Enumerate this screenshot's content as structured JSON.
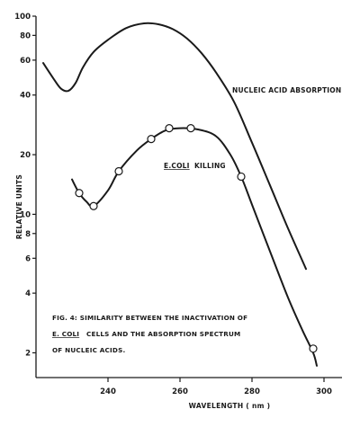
{
  "chart_data": {
    "type": "line",
    "xlabel": "WAVELENGTH ( nm )",
    "ylabel": "RELATIVE UNITS",
    "xlim": [
      220,
      305
    ],
    "ylim": [
      1.5,
      100
    ],
    "y_scale": "log",
    "x_ticks": [
      240,
      260,
      280,
      300
    ],
    "y_ticks": [
      {
        "value": 2,
        "label": "2"
      },
      {
        "value": 4,
        "label": "4"
      },
      {
        "value": 6,
        "label": "6"
      },
      {
        "value": 8,
        "label": "8"
      },
      {
        "value": 10,
        "label": "10"
      },
      {
        "value": 20,
        "label": "20"
      },
      {
        "value": 40,
        "label": "40"
      },
      {
        "value": 60,
        "label": "60"
      },
      {
        "value": 80,
        "label": "80"
      },
      {
        "value": 100,
        "label": "100"
      }
    ],
    "grid": false,
    "series": [
      {
        "name": "NUCLEIC ACID ABSORPTION",
        "markers": false,
        "x": [
          222,
          225,
          227,
          229,
          231,
          233,
          236,
          240,
          245,
          250,
          254,
          258,
          262,
          266,
          270,
          275,
          280,
          285,
          290,
          295
        ],
        "y": [
          58,
          48,
          43,
          42,
          46,
          55,
          66,
          76,
          87,
          92,
          91,
          86,
          77,
          65,
          52,
          37,
          23,
          14,
          8.5,
          5.3
        ]
      },
      {
        "name": "E.COLI KILLING",
        "markers": true,
        "x": [
          230,
          232,
          234,
          236,
          240,
          243,
          248,
          252,
          256,
          260,
          265,
          270,
          274,
          277,
          280,
          285,
          290,
          294,
          297,
          298
        ],
        "y": [
          15,
          12.8,
          11.6,
          11,
          13.2,
          16.5,
          21,
          24,
          26.5,
          27.2,
          26.8,
          24.8,
          20,
          15.5,
          11.2,
          6.5,
          3.8,
          2.6,
          2,
          1.72
        ]
      }
    ],
    "markers": [
      {
        "x": 232,
        "y": 12.8
      },
      {
        "x": 236,
        "y": 11
      },
      {
        "x": 243,
        "y": 16.5
      },
      {
        "x": 252,
        "y": 24
      },
      {
        "x": 257,
        "y": 27.2
      },
      {
        "x": 263,
        "y": 27.2
      },
      {
        "x": 277,
        "y": 15.5
      },
      {
        "x": 297,
        "y": 2.1
      }
    ],
    "annotations": [
      {
        "text": "NUCLEIC ACID ABSORPTION"
      },
      {
        "text": "E.COLI",
        "underline": true
      },
      {
        "text": "KILLING"
      }
    ],
    "caption": [
      "FIG. 4: SIMILARITY BETWEEN THE INACTIVATION OF",
      "CELLS AND THE ABSORPTION SPECTRUM",
      "OF NUCLEIC ACIDS."
    ],
    "caption_emphasis": "E. COLI",
    "line_color": "#1a1a1a"
  }
}
